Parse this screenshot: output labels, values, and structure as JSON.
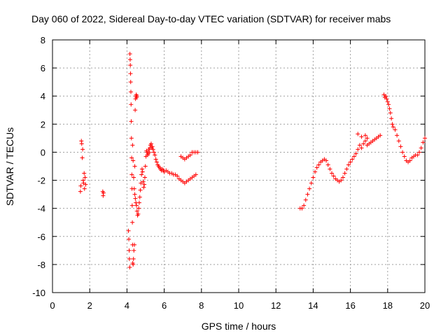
{
  "chart_data": {
    "type": "scatter",
    "title": "Day 060 of 2022, Sidereal Day-to-day VTEC variation (SDTVAR) for receiver mabs",
    "xlabel": "GPS time / hours",
    "ylabel": "SDTVAR / TECUs",
    "xlim": [
      0,
      20
    ],
    "ylim": [
      -10,
      8
    ],
    "xticks": [
      0,
      2,
      4,
      6,
      8,
      10,
      12,
      14,
      16,
      18,
      20
    ],
    "yticks": [
      -10,
      -8,
      -6,
      -4,
      -2,
      0,
      2,
      4,
      6,
      8
    ],
    "grid": true,
    "marker": "+",
    "series": [
      {
        "name": "SDTVAR",
        "color": "#ff0000",
        "points": [
          [
            1.5,
            -2.8
          ],
          [
            1.52,
            -2.4
          ],
          [
            1.55,
            0.8
          ],
          [
            1.57,
            0.6
          ],
          [
            1.6,
            -0.4
          ],
          [
            1.62,
            0.2
          ],
          [
            1.65,
            -2.0
          ],
          [
            1.67,
            -2.2
          ],
          [
            1.7,
            -1.5
          ],
          [
            1.72,
            -2.6
          ],
          [
            1.75,
            -1.8
          ],
          [
            1.78,
            -2.3
          ],
          [
            2.7,
            -2.8
          ],
          [
            2.72,
            -3.1
          ],
          [
            2.74,
            -2.9
          ],
          [
            4.08,
            -5.6
          ],
          [
            4.1,
            -6.2
          ],
          [
            4.12,
            -7.0
          ],
          [
            4.13,
            -7.6
          ],
          [
            4.15,
            -8.2
          ],
          [
            4.16,
            7.0
          ],
          [
            4.17,
            6.6
          ],
          [
            4.18,
            6.2
          ],
          [
            4.19,
            5.6
          ],
          [
            4.2,
            5.0
          ],
          [
            4.21,
            4.3
          ],
          [
            4.22,
            3.4
          ],
          [
            4.23,
            2.2
          ],
          [
            4.24,
            1.0
          ],
          [
            4.25,
            -0.4
          ],
          [
            4.26,
            -1.6
          ],
          [
            4.27,
            -2.6
          ],
          [
            4.28,
            -3.8
          ],
          [
            4.29,
            -5.0
          ],
          [
            4.3,
            -6.6
          ],
          [
            4.31,
            -7.9
          ],
          [
            4.33,
            -8.0
          ],
          [
            4.35,
            -7.6
          ],
          [
            4.37,
            -7.0
          ],
          [
            4.4,
            -6.6
          ],
          [
            4.42,
            -1.0
          ],
          [
            4.44,
            3.0
          ],
          [
            4.46,
            3.8
          ],
          [
            4.48,
            4.0
          ],
          [
            4.5,
            4.1
          ],
          [
            4.52,
            3.9
          ],
          [
            4.54,
            4.0
          ],
          [
            4.3,
            0.5
          ],
          [
            4.33,
            -0.6
          ],
          [
            4.36,
            -1.8
          ],
          [
            4.39,
            -2.6
          ],
          [
            4.42,
            -3.0
          ],
          [
            4.45,
            -3.3
          ],
          [
            4.48,
            -3.6
          ],
          [
            4.51,
            -3.8
          ],
          [
            4.54,
            -4.2
          ],
          [
            4.57,
            -4.5
          ],
          [
            4.6,
            -4.4
          ],
          [
            4.63,
            -4.0
          ],
          [
            4.66,
            -3.6
          ],
          [
            4.69,
            -3.2
          ],
          [
            4.72,
            -2.7
          ],
          [
            4.75,
            -2.2
          ],
          [
            4.78,
            -1.6
          ],
          [
            4.81,
            -1.2
          ],
          [
            4.84,
            -1.4
          ],
          [
            4.87,
            -2.1
          ],
          [
            4.9,
            -2.5
          ],
          [
            4.93,
            -2.3
          ],
          [
            4.96,
            -1.8
          ],
          [
            4.99,
            -1.0
          ],
          [
            5.02,
            -0.3
          ],
          [
            5.05,
            0.1
          ],
          [
            5.08,
            0.0
          ],
          [
            5.11,
            -0.2
          ],
          [
            5.14,
            -0.1
          ],
          [
            5.17,
            0.2
          ],
          [
            5.2,
            0.0
          ],
          [
            5.23,
            0.3
          ],
          [
            5.26,
            0.5
          ],
          [
            5.3,
            0.6
          ],
          [
            5.33,
            0.3
          ],
          [
            5.36,
            0.4
          ],
          [
            5.4,
            0.2
          ],
          [
            5.45,
            0.0
          ],
          [
            5.5,
            -0.2
          ],
          [
            5.55,
            -0.5
          ],
          [
            5.6,
            -0.7
          ],
          [
            5.65,
            -0.9
          ],
          [
            5.7,
            -1.0
          ],
          [
            5.75,
            -1.1
          ],
          [
            5.8,
            -1.2
          ],
          [
            5.85,
            -1.3
          ],
          [
            5.9,
            -1.2
          ],
          [
            5.95,
            -1.3
          ],
          [
            6.0,
            -1.4
          ],
          [
            6.1,
            -1.3
          ],
          [
            6.2,
            -1.4
          ],
          [
            6.3,
            -1.5
          ],
          [
            6.4,
            -1.5
          ],
          [
            6.5,
            -1.6
          ],
          [
            6.6,
            -1.6
          ],
          [
            6.7,
            -1.7
          ],
          [
            6.8,
            -1.9
          ],
          [
            6.9,
            -2.0
          ],
          [
            7.0,
            -2.1
          ],
          [
            7.1,
            -2.2
          ],
          [
            7.2,
            -2.1
          ],
          [
            7.3,
            -2.0
          ],
          [
            7.4,
            -1.9
          ],
          [
            7.5,
            -1.8
          ],
          [
            7.6,
            -1.7
          ],
          [
            7.7,
            -1.6
          ],
          [
            6.9,
            -0.3
          ],
          [
            7.0,
            -0.4
          ],
          [
            7.1,
            -0.5
          ],
          [
            7.2,
            -0.4
          ],
          [
            7.3,
            -0.3
          ],
          [
            7.4,
            -0.2
          ],
          [
            7.5,
            0.0
          ],
          [
            7.6,
            0.0
          ],
          [
            7.7,
            0.0
          ],
          [
            7.8,
            0.0
          ],
          [
            13.3,
            -4.0
          ],
          [
            13.4,
            -4.0
          ],
          [
            13.5,
            -3.8
          ],
          [
            13.6,
            -3.4
          ],
          [
            13.7,
            -3.0
          ],
          [
            13.8,
            -2.6
          ],
          [
            13.9,
            -2.2
          ],
          [
            14.0,
            -1.8
          ],
          [
            14.1,
            -1.4
          ],
          [
            14.2,
            -1.1
          ],
          [
            14.3,
            -0.9
          ],
          [
            14.4,
            -0.7
          ],
          [
            14.5,
            -0.6
          ],
          [
            14.6,
            -0.5
          ],
          [
            14.7,
            -0.6
          ],
          [
            14.8,
            -0.9
          ],
          [
            14.9,
            -1.2
          ],
          [
            15.0,
            -1.5
          ],
          [
            15.1,
            -1.7
          ],
          [
            15.2,
            -1.9
          ],
          [
            15.3,
            -2.0
          ],
          [
            15.4,
            -2.1
          ],
          [
            15.5,
            -2.0
          ],
          [
            15.6,
            -1.8
          ],
          [
            15.7,
            -1.5
          ],
          [
            15.8,
            -1.2
          ],
          [
            15.9,
            -0.9
          ],
          [
            16.0,
            -0.7
          ],
          [
            16.1,
            -0.5
          ],
          [
            16.2,
            -0.3
          ],
          [
            16.3,
            -0.1
          ],
          [
            16.4,
            0.2
          ],
          [
            16.5,
            0.5
          ],
          [
            16.6,
            0.3
          ],
          [
            16.7,
            0.6
          ],
          [
            16.8,
            0.8
          ],
          [
            16.9,
            0.5
          ],
          [
            17.0,
            0.6
          ],
          [
            17.1,
            0.7
          ],
          [
            17.2,
            0.8
          ],
          [
            17.3,
            0.9
          ],
          [
            17.4,
            1.0
          ],
          [
            17.5,
            1.1
          ],
          [
            17.6,
            1.2
          ],
          [
            16.4,
            1.3
          ],
          [
            16.6,
            1.1
          ],
          [
            16.8,
            1.2
          ],
          [
            16.9,
            1.0
          ],
          [
            17.8,
            4.1
          ],
          [
            17.85,
            3.9
          ],
          [
            17.9,
            4.0
          ],
          [
            17.95,
            3.8
          ],
          [
            18.0,
            3.6
          ],
          [
            18.05,
            3.4
          ],
          [
            18.1,
            3.1
          ],
          [
            18.15,
            2.8
          ],
          [
            18.2,
            2.4
          ],
          [
            18.25,
            2.0
          ],
          [
            18.3,
            1.8
          ],
          [
            18.4,
            1.6
          ],
          [
            18.5,
            1.2
          ],
          [
            18.6,
            0.8
          ],
          [
            18.7,
            0.4
          ],
          [
            18.8,
            0.0
          ],
          [
            18.9,
            -0.3
          ],
          [
            19.0,
            -0.6
          ],
          [
            19.1,
            -0.7
          ],
          [
            19.2,
            -0.6
          ],
          [
            19.3,
            -0.4
          ],
          [
            19.4,
            -0.3
          ],
          [
            19.5,
            -0.2
          ],
          [
            19.6,
            -0.2
          ],
          [
            19.7,
            0.0
          ],
          [
            19.8,
            0.3
          ],
          [
            19.9,
            0.7
          ],
          [
            20.0,
            1.0
          ]
        ]
      }
    ]
  }
}
